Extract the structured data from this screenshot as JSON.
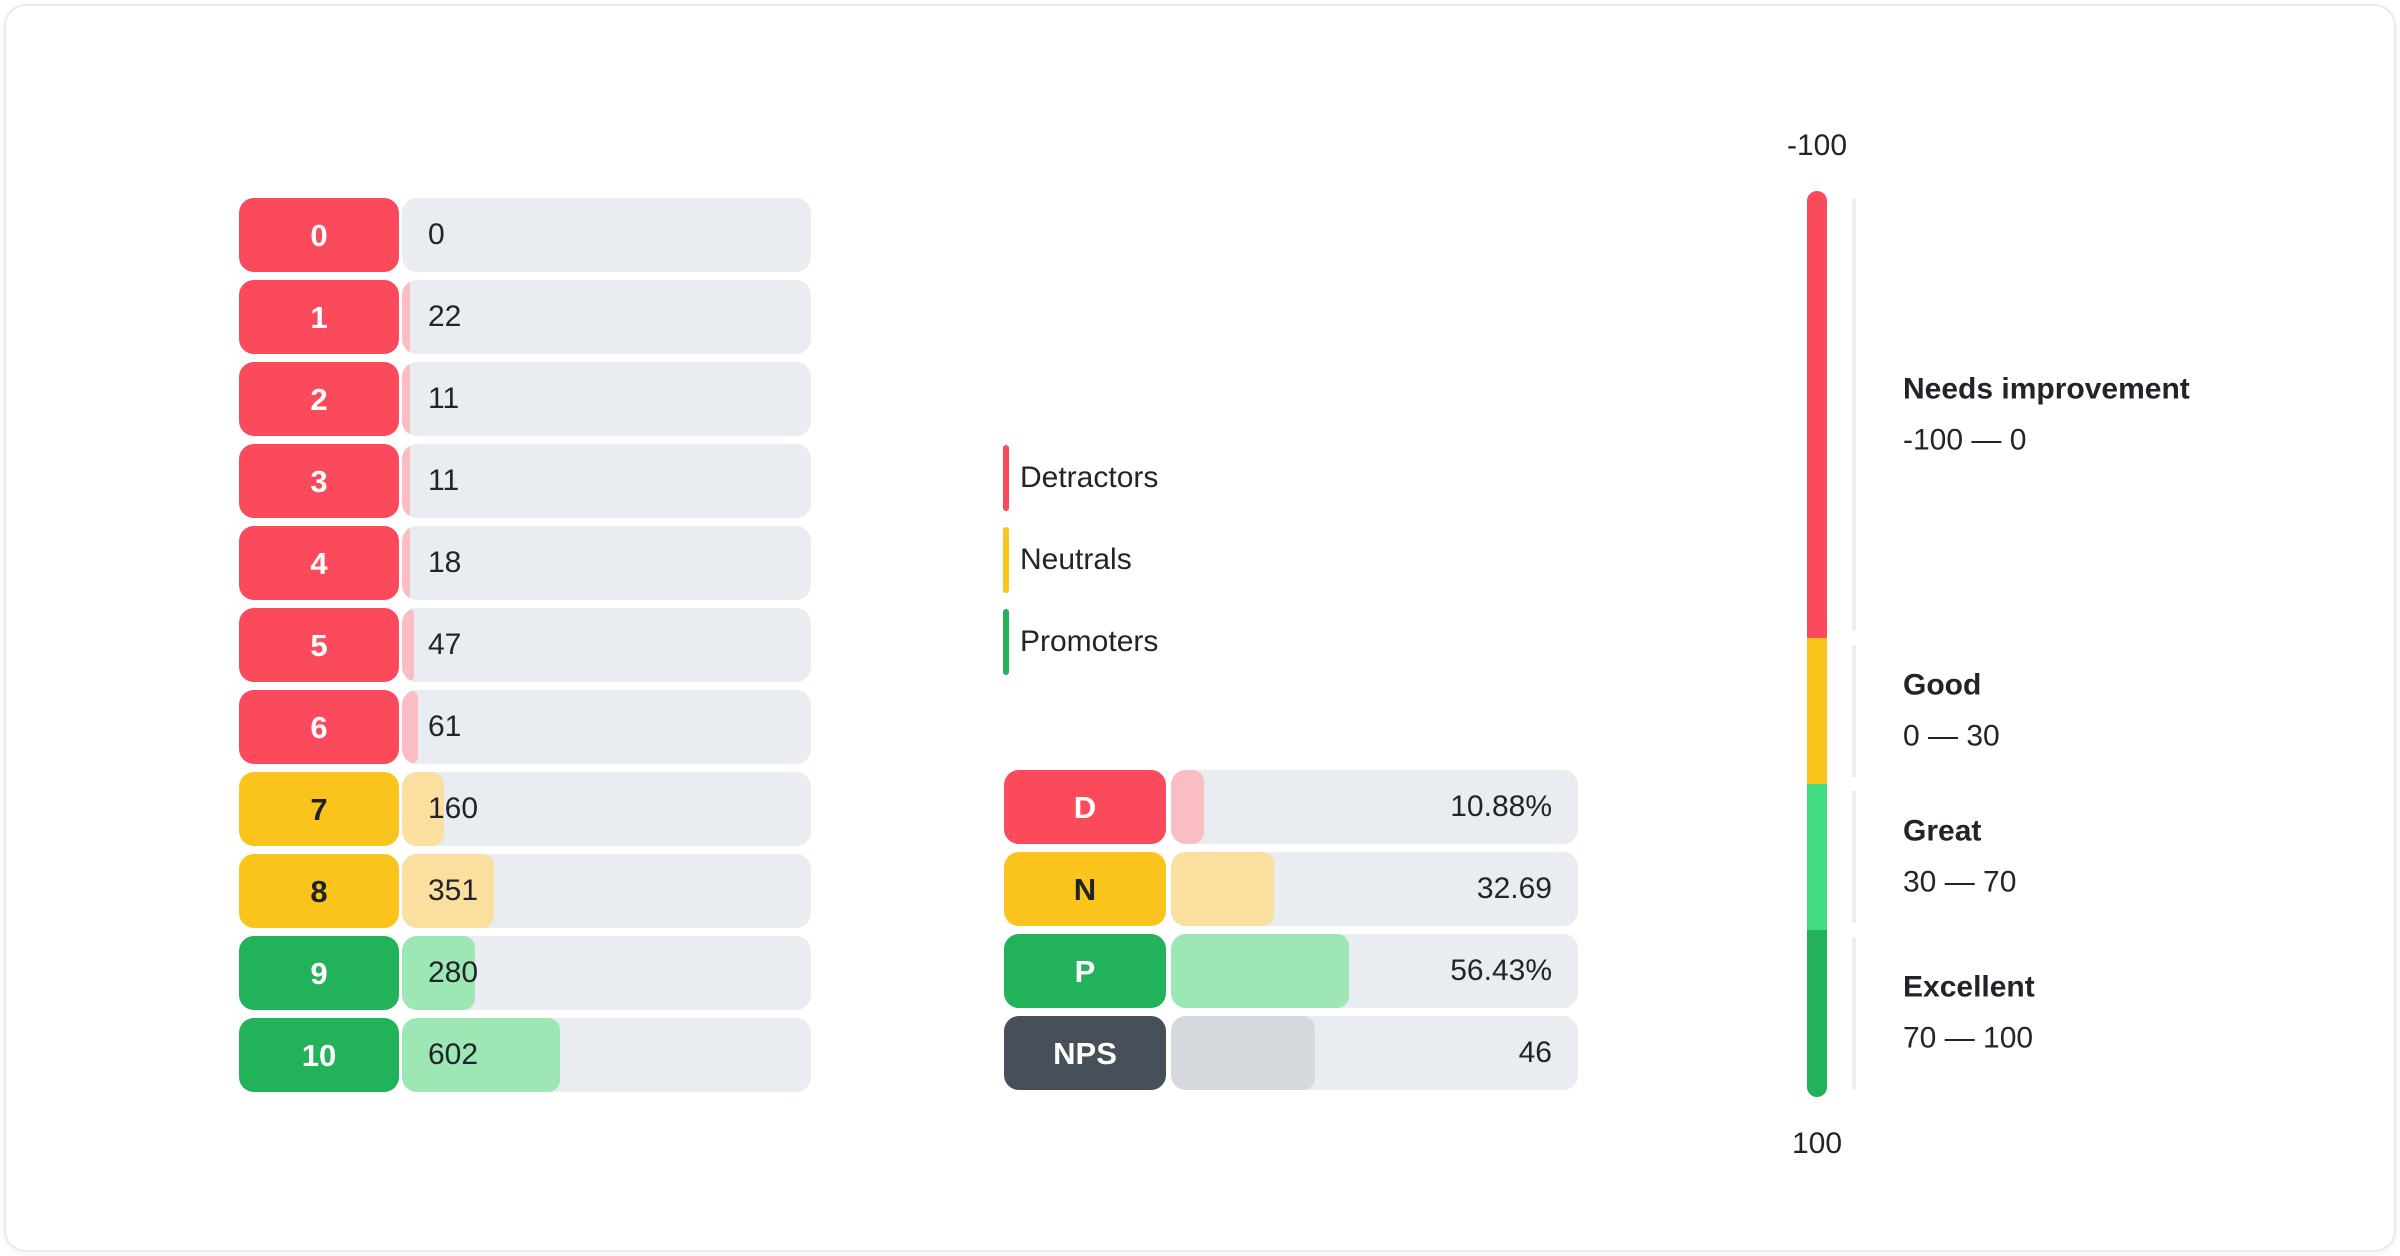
{
  "colors": {
    "red": "#FA4A5C",
    "red-light": "#FBBDC4",
    "yellow": "#FBC41D",
    "yellow-light": "#FBDF9F",
    "green": "#22B25A",
    "green-light": "#9CE7B4",
    "green-bright": "#41DD80",
    "slate": "#474F59",
    "slate-light": "#D5D9DD",
    "track": "#E9ECF0",
    "tick": "#EDEFF2",
    "text": "#212529",
    "text-on-yellow": "#1F2327",
    "card-border": "#E9EBEE"
  },
  "distribution": {
    "rows": [
      {
        "score": "0",
        "value": 0,
        "display": "0",
        "fill_pct": 0
      },
      {
        "score": "1",
        "value": 22,
        "display": "22",
        "fill_pct": 1.41
      },
      {
        "score": "2",
        "value": 11,
        "display": "11",
        "fill_pct": 0.7
      },
      {
        "score": "3",
        "value": 11,
        "display": "11",
        "fill_pct": 0.7
      },
      {
        "score": "4",
        "value": 18,
        "display": "18",
        "fill_pct": 1.15
      },
      {
        "score": "5",
        "value": 47,
        "display": "47",
        "fill_pct": 3.01
      },
      {
        "score": "6",
        "value": 61,
        "display": "61",
        "fill_pct": 3.9
      },
      {
        "score": "7",
        "value": 160,
        "display": "160",
        "fill_pct": 10.24
      },
      {
        "score": "8",
        "value": 351,
        "display": "351",
        "fill_pct": 22.46
      },
      {
        "score": "9",
        "value": 280,
        "display": "280",
        "fill_pct": 17.91
      },
      {
        "score": "10",
        "value": 602,
        "display": "602",
        "fill_pct": 38.52
      }
    ]
  },
  "legend": {
    "items": [
      {
        "label": "Detractors"
      },
      {
        "label": "Neutrals"
      },
      {
        "label": "Promoters"
      }
    ]
  },
  "summary": {
    "rows": [
      {
        "label": "D",
        "display": "10.88%",
        "fill_pct": 8.2
      },
      {
        "label": "N",
        "display": "32.69",
        "fill_pct": 25.4
      },
      {
        "label": "P",
        "display": "56.43%",
        "fill_pct": 43.7
      },
      {
        "label": "NPS",
        "display": "46",
        "fill_pct": 35.5
      }
    ]
  },
  "gauge": {
    "top_label": "-100",
    "bottom_label": "100",
    "segments": [
      {
        "title": "Needs improvement",
        "range": "-100 — 0",
        "color": "#FA4A5C",
        "height_pct": 49.35
      },
      {
        "title": "Good",
        "range": "0 — 30",
        "color": "#FBC41D",
        "height_pct": 16.1
      },
      {
        "title": "Great",
        "range": "30 — 70",
        "color": "#41DD80",
        "height_pct": 16.1
      },
      {
        "title": "Excellent",
        "range": "70 — 100",
        "color": "#22B25A",
        "height_pct": 18.45
      }
    ]
  },
  "chart_data": [
    {
      "type": "bar",
      "orientation": "horizontal",
      "title": "",
      "categories": [
        "0",
        "1",
        "2",
        "3",
        "4",
        "5",
        "6",
        "7",
        "8",
        "9",
        "10"
      ],
      "values": [
        0,
        22,
        11,
        11,
        18,
        47,
        61,
        160,
        351,
        280,
        602
      ],
      "groups": {
        "detractors": [
          "0",
          "1",
          "2",
          "3",
          "4",
          "5",
          "6"
        ],
        "neutrals": [
          "7",
          "8"
        ],
        "promoters": [
          "9",
          "10"
        ]
      },
      "legend": [
        "Detractors",
        "Neutrals",
        "Promoters"
      ],
      "xlabel": "",
      "ylabel": ""
    },
    {
      "type": "bar",
      "orientation": "horizontal",
      "title": "",
      "categories": [
        "D",
        "N",
        "P",
        "NPS"
      ],
      "values": [
        10.88,
        32.69,
        56.43,
        46
      ],
      "value_labels": [
        "10.88%",
        "32.69",
        "56.43%",
        "46"
      ],
      "xlabel": "",
      "ylabel": ""
    },
    {
      "type": "bar",
      "subtype": "vertical-scale",
      "title": "",
      "axis_range": [
        -100,
        100
      ],
      "tick_labels": [
        "-100",
        "100"
      ],
      "bands": [
        {
          "label": "Needs improvement",
          "from": -100,
          "to": 0
        },
        {
          "label": "Good",
          "from": 0,
          "to": 30
        },
        {
          "label": "Great",
          "from": 30,
          "to": 70
        },
        {
          "label": "Excellent",
          "from": 70,
          "to": 100
        }
      ]
    }
  ]
}
